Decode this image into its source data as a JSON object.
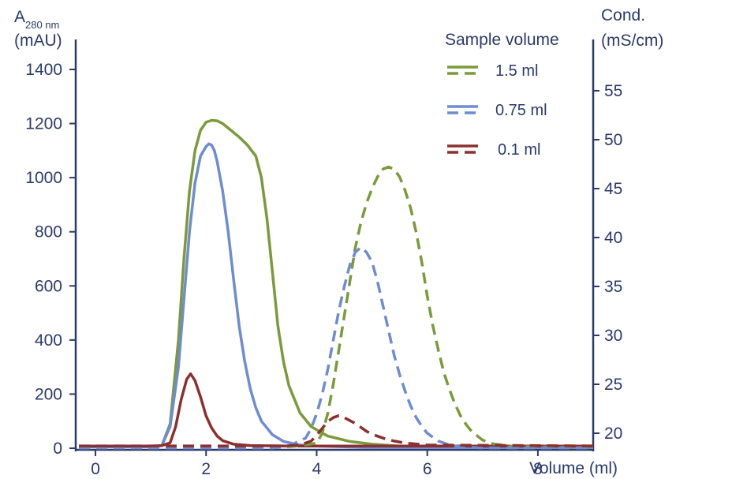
{
  "chart_data": {
    "type": "line",
    "title": "",
    "x_axis": {
      "label": "Volume  (ml)",
      "range": [
        -0.3,
        9.0
      ],
      "ticks": [
        0,
        2,
        4,
        6,
        8
      ]
    },
    "y_left_axis": {
      "label_main": "A",
      "label_sub": "280 nm",
      "label_unit": "(mAU)",
      "range": [
        0,
        1400
      ],
      "ticks": [
        0,
        200,
        400,
        600,
        800,
        1000,
        1200,
        1400
      ]
    },
    "y_right_axis": {
      "label_line1": "Cond.",
      "label_line2": "(mS/cm)",
      "range": [
        18.0,
        58.5
      ],
      "ticks": [
        20,
        25,
        30,
        35,
        40,
        45,
        50,
        55
      ]
    },
    "legend": {
      "title": "Sample volume",
      "position": "top-right",
      "items": [
        "1.5 ml",
        "0.75 ml",
        "0.1 ml"
      ]
    },
    "colors": {
      "axis": "#2b3a6b",
      "green": "#7b9a3a",
      "blue": "#6e8ccf",
      "red": "#8b3030"
    },
    "series": [
      {
        "name": "1.5 ml",
        "kind": "absorbance",
        "axis": "left",
        "color": "#7b9a3a",
        "dash": false,
        "x": [
          -0.3,
          1.0,
          1.2,
          1.35,
          1.5,
          1.6,
          1.7,
          1.8,
          1.9,
          2.0,
          2.1,
          2.2,
          2.3,
          2.45,
          2.6,
          2.75,
          2.9,
          3.0,
          3.1,
          3.2,
          3.3,
          3.4,
          3.5,
          3.7,
          3.9,
          4.2,
          4.6,
          5.0,
          5.5,
          6.0,
          9.0
        ],
        "y": [
          5,
          5,
          10,
          90,
          400,
          700,
          950,
          1100,
          1175,
          1205,
          1212,
          1210,
          1200,
          1175,
          1150,
          1120,
          1080,
          1000,
          850,
          650,
          450,
          320,
          230,
          130,
          80,
          45,
          25,
          15,
          8,
          5,
          3
        ]
      },
      {
        "name": "0.75 ml",
        "kind": "absorbance",
        "axis": "left",
        "color": "#6e8ccf",
        "dash": false,
        "x": [
          -0.3,
          1.0,
          1.2,
          1.35,
          1.5,
          1.6,
          1.7,
          1.8,
          1.9,
          2.0,
          2.05,
          2.1,
          2.15,
          2.2,
          2.3,
          2.4,
          2.5,
          2.6,
          2.7,
          2.8,
          2.9,
          3.0,
          3.2,
          3.4,
          3.7,
          4.0,
          4.5,
          5.0,
          9.0
        ],
        "y": [
          5,
          5,
          10,
          80,
          300,
          550,
          800,
          980,
          1080,
          1115,
          1125,
          1120,
          1100,
          1060,
          950,
          800,
          620,
          450,
          320,
          220,
          150,
          100,
          50,
          25,
          12,
          8,
          5,
          3,
          2
        ]
      },
      {
        "name": "0.1 ml",
        "kind": "absorbance",
        "axis": "left",
        "color": "#8b3030",
        "dash": false,
        "x": [
          -0.3,
          1.0,
          1.2,
          1.35,
          1.45,
          1.55,
          1.65,
          1.72,
          1.8,
          1.9,
          2.0,
          2.1,
          2.2,
          2.3,
          2.5,
          2.8,
          3.5,
          9.0
        ],
        "y": [
          8,
          8,
          10,
          20,
          80,
          180,
          255,
          275,
          250,
          190,
          120,
          75,
          45,
          28,
          15,
          10,
          8,
          8
        ]
      },
      {
        "name": "1.5 ml",
        "kind": "conductivity",
        "axis": "right",
        "color": "#7b9a3a",
        "dash": true,
        "x": [
          -0.3,
          3.0,
          3.4,
          3.7,
          3.9,
          4.0,
          4.1,
          4.2,
          4.3,
          4.4,
          4.5,
          4.6,
          4.7,
          4.8,
          4.9,
          5.0,
          5.1,
          5.2,
          5.3,
          5.4,
          5.5,
          5.6,
          5.7,
          5.8,
          5.9,
          6.0,
          6.1,
          6.2,
          6.3,
          6.4,
          6.5,
          6.6,
          6.7,
          6.8,
          7.0,
          7.2,
          7.5,
          8.0,
          9.0
        ],
        "y": [
          18.5,
          18.5,
          18.6,
          18.7,
          18.9,
          19.0,
          20.0,
          22.0,
          25.0,
          28.5,
          32.0,
          35.5,
          39.0,
          41.5,
          43.5,
          45.0,
          46.2,
          47.0,
          47.2,
          47.0,
          46.2,
          44.8,
          43.0,
          40.5,
          37.5,
          34.0,
          31.0,
          28.5,
          26.2,
          24.5,
          23.0,
          21.8,
          20.9,
          20.2,
          19.3,
          18.9,
          18.7,
          18.6,
          18.5
        ]
      },
      {
        "name": "0.75 ml",
        "kind": "conductivity",
        "axis": "right",
        "color": "#6e8ccf",
        "dash": true,
        "x": [
          -0.3,
          3.2,
          3.5,
          3.8,
          3.9,
          4.0,
          4.1,
          4.2,
          4.3,
          4.4,
          4.5,
          4.6,
          4.7,
          4.8,
          4.9,
          5.0,
          5.1,
          5.2,
          5.3,
          5.4,
          5.5,
          5.6,
          5.7,
          5.8,
          5.9,
          6.0,
          6.2,
          6.4,
          6.6,
          7.0,
          8.0,
          9.0
        ],
        "y": [
          18.5,
          18.5,
          18.7,
          19.5,
          20.5,
          22.0,
          24.0,
          26.5,
          29.5,
          32.5,
          35.0,
          37.2,
          38.5,
          39.0,
          38.5,
          37.5,
          35.5,
          33.0,
          30.5,
          28.0,
          26.0,
          24.3,
          22.8,
          21.6,
          20.7,
          20.0,
          19.2,
          18.8,
          18.6,
          18.5,
          18.5,
          18.5
        ]
      },
      {
        "name": "0.1 ml",
        "kind": "conductivity",
        "axis": "right",
        "color": "#8b3030",
        "dash": true,
        "x": [
          -0.3,
          3.0,
          3.4,
          3.7,
          3.9,
          4.0,
          4.1,
          4.2,
          4.3,
          4.4,
          4.5,
          4.6,
          4.7,
          4.8,
          4.9,
          5.0,
          5.2,
          5.4,
          5.6,
          6.0,
          9.0
        ],
        "y": [
          18.7,
          18.7,
          18.7,
          18.8,
          19.2,
          19.8,
          20.5,
          21.2,
          21.6,
          21.8,
          21.6,
          21.3,
          21.0,
          20.6,
          20.2,
          19.9,
          19.5,
          19.2,
          19.0,
          18.8,
          18.7
        ]
      }
    ]
  }
}
